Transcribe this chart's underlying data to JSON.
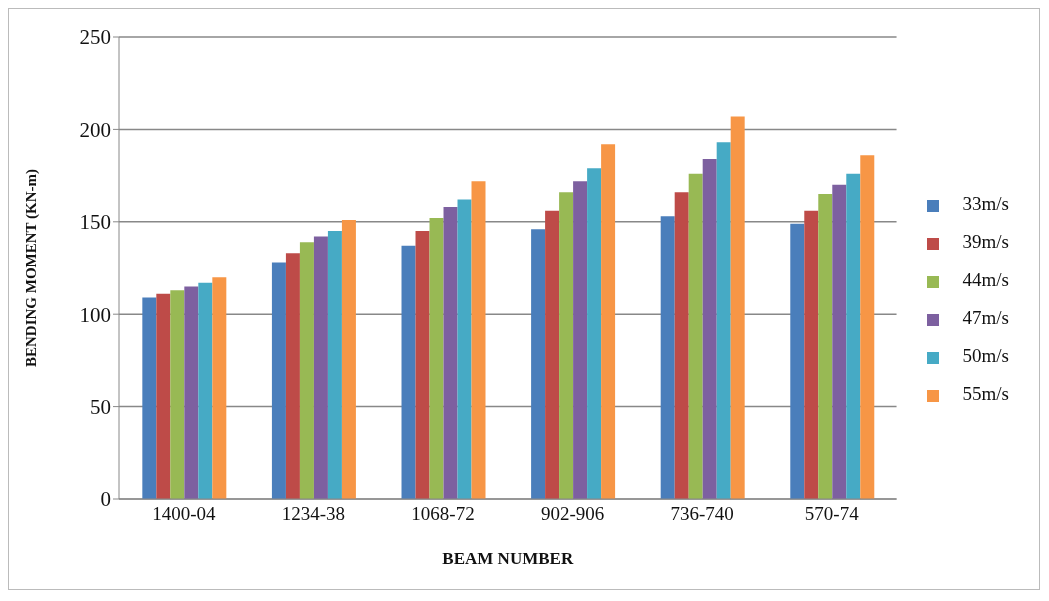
{
  "chart_data": {
    "type": "bar",
    "xlabel": "BEAM NUMBER",
    "ylabel": "BENDING MOMENT  (KN-m)",
    "categories": [
      "1400-04",
      "1234-38",
      "1068-72",
      "902-906",
      "736-740",
      "570-74"
    ],
    "series": [
      {
        "name": "33m/s",
        "color": "#4a7ebb",
        "values": [
          109,
          128,
          137,
          146,
          153,
          149
        ]
      },
      {
        "name": "39m/s",
        "color": "#be4b48",
        "values": [
          111,
          133,
          145,
          156,
          166,
          156
        ]
      },
      {
        "name": "44m/s",
        "color": "#98b954",
        "values": [
          113,
          139,
          152,
          166,
          176,
          165
        ]
      },
      {
        "name": "47m/s",
        "color": "#7d60a0",
        "values": [
          115,
          142,
          158,
          172,
          184,
          170
        ]
      },
      {
        "name": "50m/s",
        "color": "#46aac5",
        "values": [
          117,
          145,
          162,
          179,
          193,
          176
        ]
      },
      {
        "name": "55m/s",
        "color": "#f79646",
        "values": [
          120,
          151,
          172,
          192,
          207,
          186
        ]
      }
    ],
    "ylim": [
      0,
      250
    ],
    "yticks": [
      0,
      50,
      100,
      150,
      200,
      250
    ],
    "grid": "y",
    "legend": "right"
  }
}
